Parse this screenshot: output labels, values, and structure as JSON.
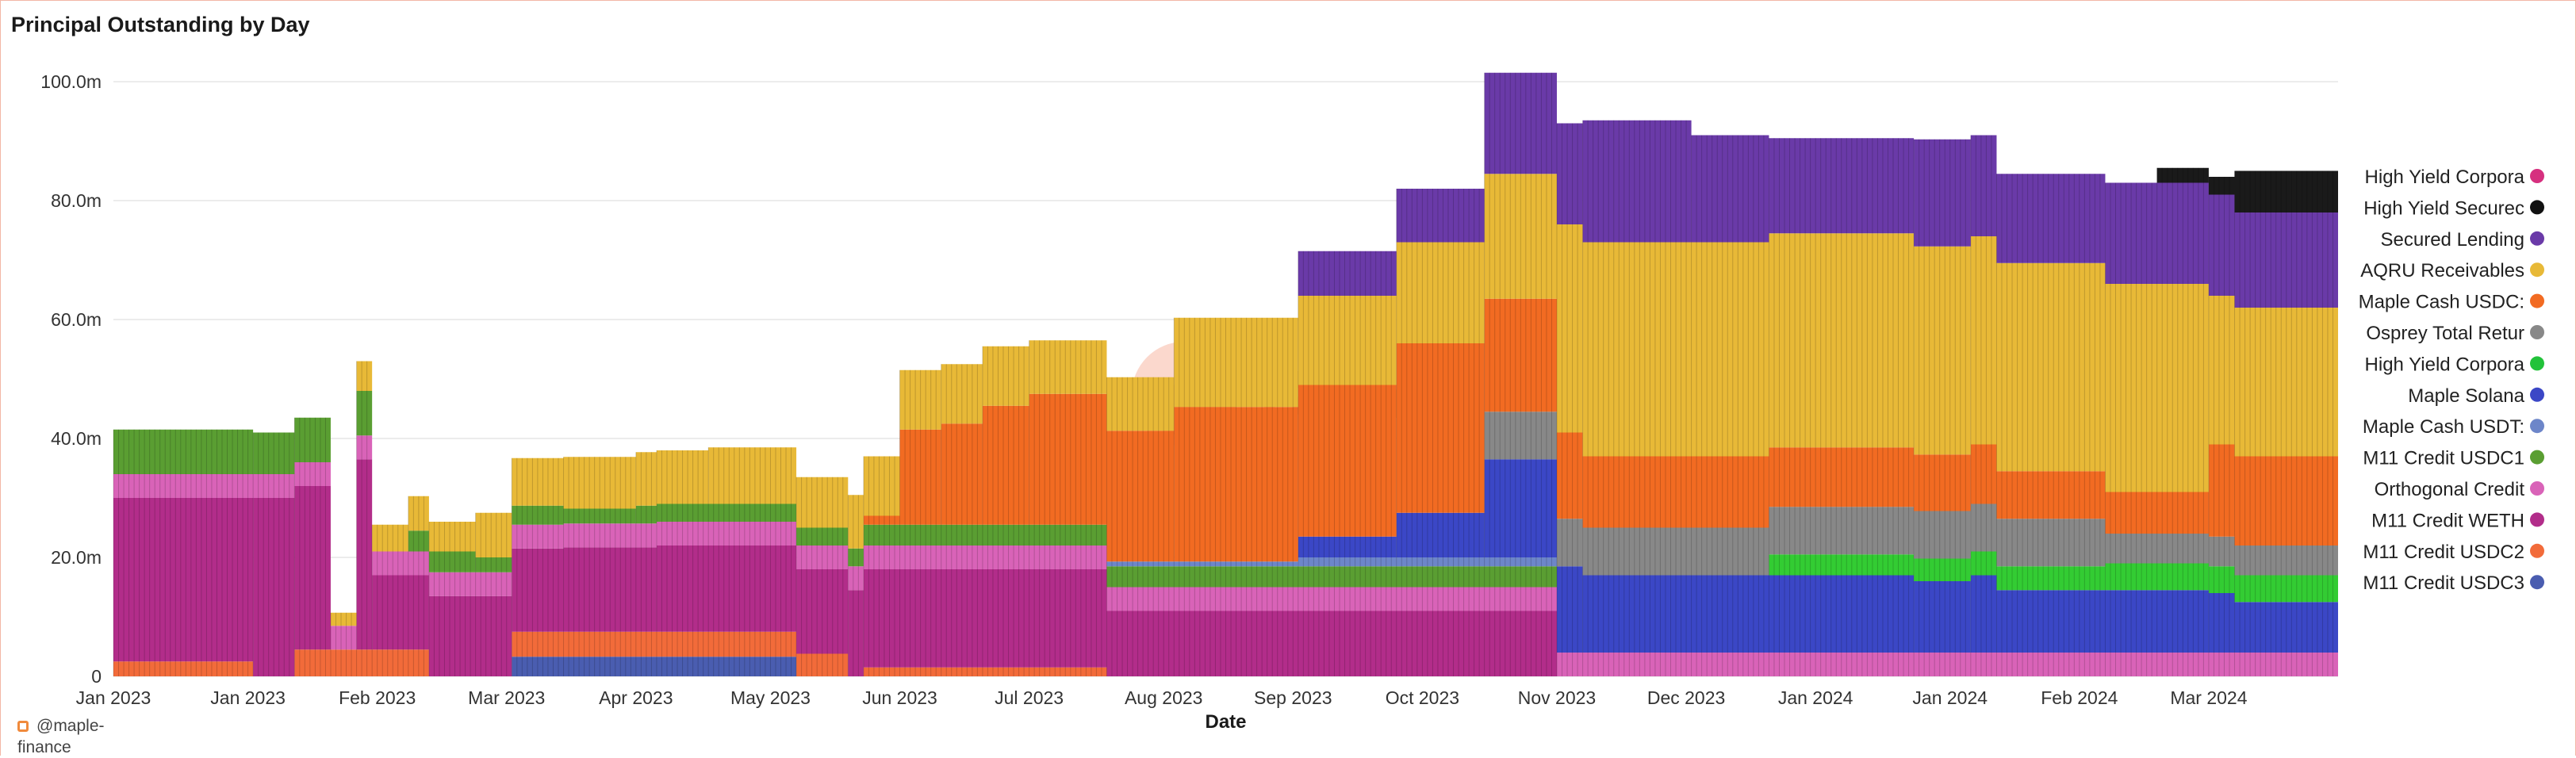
{
  "chart_data": {
    "type": "bar",
    "stacked": true,
    "title": "Principal Outstanding by Day",
    "xlabel": "Date",
    "ylabel": "",
    "ylim": [
      0,
      100000000
    ],
    "yticks": [
      {
        "value": 0,
        "label": "0"
      },
      {
        "value": 20000000,
        "label": "20.0m"
      },
      {
        "value": 40000000,
        "label": "40.0m"
      },
      {
        "value": 60000000,
        "label": "60.0m"
      },
      {
        "value": 80000000,
        "label": "80.0m"
      },
      {
        "value": 100000000,
        "label": "100.0m"
      }
    ],
    "grid": true,
    "legend_position": "right",
    "watermark": "Dune",
    "xrange_days": [
      0,
      430
    ],
    "xticks": [
      {
        "day": 0,
        "label": "Jan 2023"
      },
      {
        "day": 26,
        "label": "Jan 2023"
      },
      {
        "day": 51,
        "label": "Feb 2023"
      },
      {
        "day": 76,
        "label": "Mar 2023"
      },
      {
        "day": 101,
        "label": "Apr 2023"
      },
      {
        "day": 127,
        "label": "May 2023"
      },
      {
        "day": 152,
        "label": "Jun 2023"
      },
      {
        "day": 177,
        "label": "Jul 2023"
      },
      {
        "day": 203,
        "label": "Aug 2023"
      },
      {
        "day": 228,
        "label": "Sep 2023"
      },
      {
        "day": 253,
        "label": "Oct 2023"
      },
      {
        "day": 279,
        "label": "Nov 2023"
      },
      {
        "day": 304,
        "label": "Dec 2023"
      },
      {
        "day": 329,
        "label": "Jan 2024"
      },
      {
        "day": 355,
        "label": "Jan 2024"
      },
      {
        "day": 380,
        "label": "Feb 2024"
      },
      {
        "day": 405,
        "label": "Mar 2024"
      }
    ],
    "series": [
      {
        "name": "M11 Credit USDC3",
        "color": "#4a5db0",
        "segments": [
          [
            77,
            3.3
          ],
          [
            132,
            0
          ]
        ]
      },
      {
        "name": "M11 Credit USDC2",
        "color": "#f26b3a",
        "segments": [
          [
            0,
            2.5
          ],
          [
            27,
            0
          ],
          [
            35,
            4.5
          ],
          [
            61,
            0
          ],
          [
            77,
            4.2
          ],
          [
            132,
            3.8
          ],
          [
            142,
            0
          ],
          [
            145,
            1.5
          ],
          [
            192,
            0
          ]
        ]
      },
      {
        "name": "M11 Credit WETH",
        "color": "#b22d8a",
        "segments": [
          [
            0,
            27.5
          ],
          [
            27,
            30
          ],
          [
            35,
            27.5
          ],
          [
            42,
            0
          ],
          [
            47,
            32
          ],
          [
            50,
            12.5
          ],
          [
            57,
            12.5
          ],
          [
            61,
            13.5
          ],
          [
            77,
            14
          ],
          [
            87,
            14.2
          ],
          [
            105,
            14.5
          ],
          [
            132,
            14.2
          ],
          [
            142,
            14.5
          ],
          [
            145,
            16.5
          ],
          [
            192,
            11
          ],
          [
            279,
            0
          ]
        ]
      },
      {
        "name": "Orthogonal Credit",
        "color": "#d963b8",
        "segments": [
          [
            0,
            4
          ]
        ]
      },
      {
        "name": "M11 Credit USDC1",
        "color": "#5a9e32",
        "segments": [
          [
            0,
            7.5
          ],
          [
            27,
            7
          ],
          [
            35,
            7.5
          ],
          [
            42,
            0
          ],
          [
            47,
            7.5
          ],
          [
            50,
            0
          ],
          [
            57,
            3.5
          ],
          [
            61,
            3.5
          ],
          [
            70,
            2.5
          ],
          [
            77,
            3.2
          ],
          [
            87,
            2.5
          ],
          [
            101,
            3
          ],
          [
            142,
            3
          ],
          [
            145,
            3.5
          ],
          [
            192,
            3.5
          ],
          [
            279,
            0
          ]
        ]
      },
      {
        "name": "Maple Cash USDT1",
        "color": "#6d86c9",
        "segments": [
          [
            192,
            0.8
          ],
          [
            229,
            1.5
          ],
          [
            279,
            0
          ]
        ]
      },
      {
        "name": "Maple Solana",
        "color": "#3b47c6",
        "segments": [
          [
            229,
            3.5
          ],
          [
            248,
            7.5
          ],
          [
            265,
            16.5
          ],
          [
            279,
            14.5
          ],
          [
            284,
            13
          ],
          [
            305,
            13
          ],
          [
            320,
            13
          ],
          [
            348,
            12
          ],
          [
            359,
            13
          ],
          [
            364,
            10.5
          ],
          [
            385,
            10.5
          ],
          [
            405,
            10
          ],
          [
            410,
            8.5
          ]
        ]
      },
      {
        "name": "High Yield Corporate (green)",
        "color": "#33cc33",
        "segments": [
          [
            320,
            3.5
          ],
          [
            348,
            3.8
          ],
          [
            359,
            4
          ],
          [
            364,
            4
          ],
          [
            385,
            4.5
          ],
          [
            405,
            4.5
          ],
          [
            410,
            4.5
          ]
        ]
      },
      {
        "name": "Osprey Total Return",
        "color": "#888888",
        "segments": [
          [
            265,
            8
          ],
          [
            279,
            8
          ],
          [
            284,
            8
          ],
          [
            305,
            8
          ],
          [
            320,
            8
          ],
          [
            348,
            8
          ],
          [
            359,
            8
          ],
          [
            364,
            8
          ],
          [
            385,
            5
          ],
          [
            405,
            5
          ],
          [
            410,
            5
          ]
        ]
      },
      {
        "name": "Maple Cash USDC1",
        "color": "#f26b22",
        "segments": [
          [
            142,
            0
          ],
          [
            145,
            1.5
          ],
          [
            152,
            16
          ],
          [
            160,
            17
          ],
          [
            168,
            20
          ],
          [
            177,
            22
          ],
          [
            192,
            22
          ],
          [
            205,
            26
          ],
          [
            229,
            25.5
          ],
          [
            248,
            28.5
          ],
          [
            265,
            19
          ],
          [
            279,
            14.5
          ],
          [
            284,
            12
          ],
          [
            305,
            12
          ],
          [
            320,
            10
          ],
          [
            348,
            9.5
          ],
          [
            359,
            10
          ],
          [
            364,
            8
          ],
          [
            385,
            7
          ],
          [
            405,
            15.5
          ],
          [
            410,
            15
          ]
        ]
      },
      {
        "name": "AQRU Receivables",
        "color": "#e8b937",
        "segments": [
          [
            0,
            0
          ],
          [
            42,
            2.2
          ],
          [
            47,
            5
          ],
          [
            50,
            4.5
          ],
          [
            57,
            5.8
          ],
          [
            61,
            5
          ],
          [
            70,
            7.5
          ],
          [
            77,
            8
          ],
          [
            87,
            8.7
          ],
          [
            101,
            9
          ],
          [
            115,
            9.5
          ],
          [
            132,
            8.5
          ],
          [
            142,
            9
          ],
          [
            145,
            10
          ],
          [
            152,
            10
          ],
          [
            160,
            10
          ],
          [
            168,
            10
          ],
          [
            177,
            9
          ],
          [
            192,
            9
          ],
          [
            205,
            15
          ],
          [
            220,
            15
          ],
          [
            229,
            15
          ],
          [
            248,
            17
          ],
          [
            265,
            21
          ],
          [
            279,
            35
          ],
          [
            284,
            36
          ],
          [
            305,
            36
          ],
          [
            320,
            36
          ],
          [
            348,
            35
          ],
          [
            359,
            35
          ],
          [
            364,
            35
          ],
          [
            385,
            35
          ],
          [
            405,
            25
          ],
          [
            410,
            25
          ]
        ]
      },
      {
        "name": "Secured Lending",
        "color": "#6a3aa8",
        "segments": [
          [
            229,
            7.5
          ],
          [
            248,
            9
          ],
          [
            265,
            17
          ],
          [
            279,
            17
          ],
          [
            284,
            20.5
          ],
          [
            305,
            18
          ],
          [
            320,
            16
          ],
          [
            348,
            18
          ],
          [
            359,
            17
          ],
          [
            364,
            15
          ],
          [
            385,
            17
          ],
          [
            405,
            17
          ],
          [
            410,
            16
          ]
        ]
      },
      {
        "name": "High Yield Secured",
        "color": "#1a1a1a",
        "segments": [
          [
            395,
            2.5
          ],
          [
            405,
            3
          ],
          [
            410,
            7
          ]
        ]
      },
      {
        "name": "High Yield Corporate (pink)",
        "color": "#e0448a",
        "segments": [
          [
            405,
            0
          ]
        ]
      }
    ]
  },
  "legend": [
    {
      "label": "High Yield Corpora",
      "color": "#d6307f"
    },
    {
      "label": "High Yield Securec",
      "color": "#111111"
    },
    {
      "label": "Secured Lending",
      "color": "#6a3aa8"
    },
    {
      "label": "AQRU Receivables",
      "color": "#e8b937"
    },
    {
      "label": "Maple Cash USDC:",
      "color": "#f26b22"
    },
    {
      "label": "Osprey Total Retur",
      "color": "#888888"
    },
    {
      "label": "High Yield Corpora",
      "color": "#22c23a"
    },
    {
      "label": "Maple Solana",
      "color": "#3b47c6"
    },
    {
      "label": "Maple Cash USDT:",
      "color": "#6d86c9"
    },
    {
      "label": "M11 Credit USDC1",
      "color": "#5a9e32"
    },
    {
      "label": "Orthogonal Credit",
      "color": "#d963b8"
    },
    {
      "label": "M11 Credit WETH",
      "color": "#b22d8a"
    },
    {
      "label": "M11 Credit USDC2",
      "color": "#f26b3a"
    },
    {
      "label": "M11 Credit USDC3",
      "color": "#4a5db0"
    }
  ],
  "footer": {
    "handle": "@maple-finance"
  }
}
